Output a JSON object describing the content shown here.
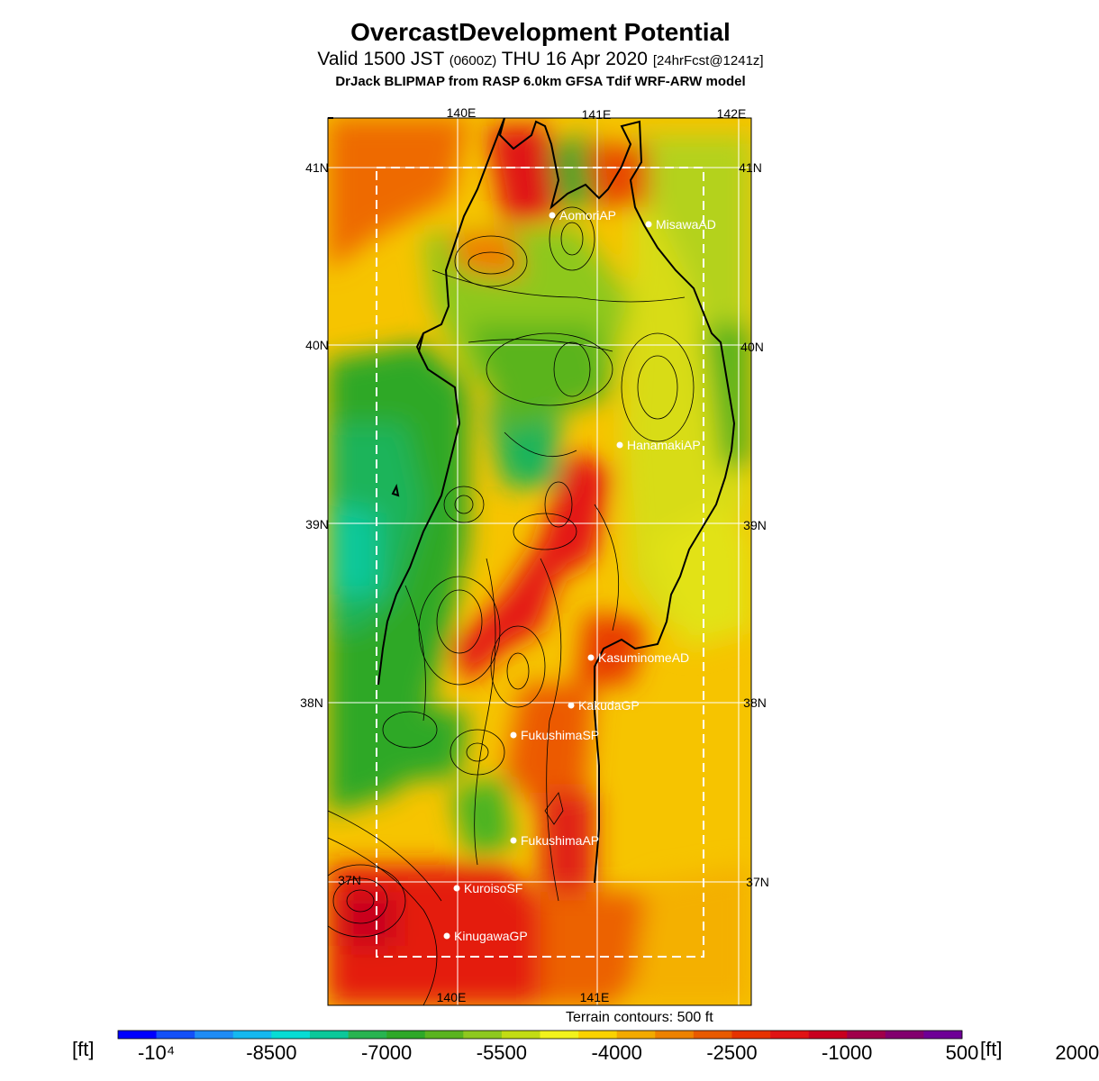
{
  "header": {
    "title": "OvercastDevelopment Potential",
    "valid_main": "Valid 1500 JST",
    "valid_utc": "(0600Z)",
    "valid_date": "THU 16 Apr 2020",
    "forecast": "[24hrFcst@1241z]",
    "model": "DrJack BLIPMAP from RASP 6.0km GFSA Tdif WRF-ARW model"
  },
  "map": {
    "lon_labels_top": [
      "140E",
      "141E",
      "142E"
    ],
    "lon_labels_bottom": [
      "140E",
      "141E"
    ],
    "lat_labels_left": [
      "41N",
      "40N",
      "39N",
      "38N",
      "37N"
    ],
    "lat_labels_right": [
      "41N",
      "40N",
      "39N",
      "38N",
      "37N"
    ],
    "stations": [
      {
        "name": "AomoriAP"
      },
      {
        "name": "MisawaAD"
      },
      {
        "name": "HanamakiAP"
      },
      {
        "name": "KasuminomeAD"
      },
      {
        "name": "KakudaGP"
      },
      {
        "name": "FukushimaSP"
      },
      {
        "name": "FukushimaAP"
      },
      {
        "name": "KuroisoSF"
      },
      {
        "name": "KinugawaGP"
      }
    ]
  },
  "terrain_note": "Terrain contours: 500 ft",
  "colorbar": {
    "unit": "[ft]",
    "ticks": [
      "-10⁴",
      "-8500",
      "-7000",
      "-5500",
      "-4000",
      "-2500",
      "-1000",
      "500",
      "2000"
    ],
    "colors": [
      "#0000ff",
      "#1450f8",
      "#1f8cf5",
      "#15b8f0",
      "#06dcd4",
      "#0cc89a",
      "#28b450",
      "#2ea828",
      "#5ab41e",
      "#8ec81e",
      "#c2dc14",
      "#f2f21c",
      "#fad200",
      "#f2aa00",
      "#ee8200",
      "#e85a00",
      "#e63200",
      "#e01414",
      "#c8001e",
      "#a0004a",
      "#82006e",
      "#6e0096"
    ]
  }
}
